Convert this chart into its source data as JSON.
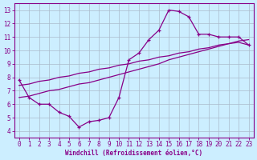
{
  "xlabel": "Windchill (Refroidissement éolien,°C)",
  "bg_color": "#cceeff",
  "grid_color": "#aabbcc",
  "line_color": "#880088",
  "xlim": [
    -0.5,
    23.5
  ],
  "ylim": [
    3.5,
    13.5
  ],
  "xticks": [
    0,
    1,
    2,
    3,
    4,
    5,
    6,
    7,
    8,
    9,
    10,
    11,
    12,
    13,
    14,
    15,
    16,
    17,
    18,
    19,
    20,
    21,
    22,
    23
  ],
  "yticks": [
    4,
    5,
    6,
    7,
    8,
    9,
    10,
    11,
    12,
    13
  ],
  "series_main_x": [
    0,
    1,
    2,
    3,
    4,
    5,
    6,
    7,
    8,
    9,
    10,
    11,
    12,
    13,
    14,
    15,
    16,
    17,
    18,
    19,
    20,
    21,
    22,
    23
  ],
  "series_main_y": [
    7.8,
    6.5,
    6.0,
    6.0,
    5.4,
    5.1,
    4.3,
    4.7,
    4.8,
    5.0,
    6.5,
    9.3,
    9.8,
    10.8,
    11.5,
    13.0,
    12.9,
    12.5,
    11.2,
    11.2,
    11.0,
    11.0,
    11.0,
    10.4
  ],
  "series_line1_x": [
    0,
    1,
    2,
    3,
    4,
    5,
    6,
    7,
    8,
    9,
    10,
    11,
    12,
    13,
    14,
    15,
    16,
    17,
    18,
    19,
    20,
    21,
    22,
    23
  ],
  "series_line1_y": [
    6.5,
    6.6,
    6.8,
    7.0,
    7.1,
    7.3,
    7.5,
    7.6,
    7.8,
    8.0,
    8.2,
    8.4,
    8.6,
    8.8,
    9.0,
    9.3,
    9.5,
    9.7,
    9.9,
    10.1,
    10.3,
    10.5,
    10.6,
    10.4
  ],
  "series_line2_x": [
    0,
    1,
    2,
    3,
    4,
    5,
    6,
    7,
    8,
    9,
    10,
    11,
    12,
    13,
    14,
    15,
    16,
    17,
    18,
    19,
    20,
    21,
    22,
    23
  ],
  "series_line2_y": [
    7.4,
    7.5,
    7.7,
    7.8,
    8.0,
    8.1,
    8.3,
    8.4,
    8.6,
    8.7,
    8.9,
    9.0,
    9.2,
    9.3,
    9.5,
    9.6,
    9.8,
    9.9,
    10.1,
    10.2,
    10.4,
    10.5,
    10.7,
    10.8
  ]
}
